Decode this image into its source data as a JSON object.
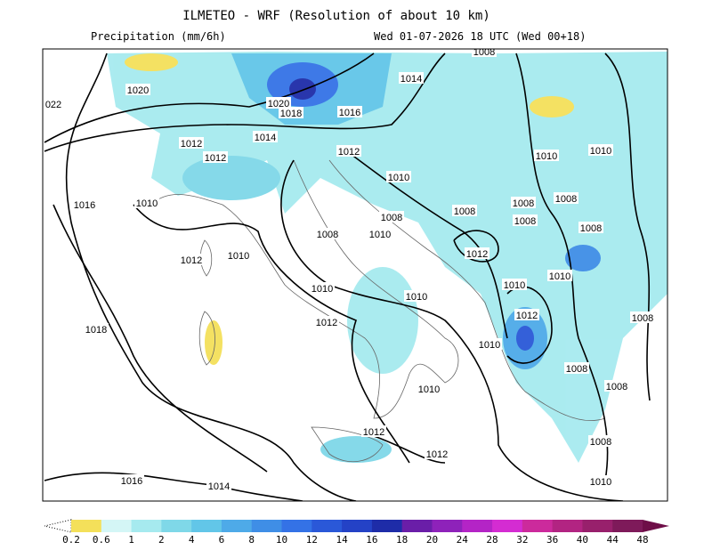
{
  "header": {
    "title": "ILMETEO - WRF (Resolution of about 10 km)",
    "field": "Precipitation (mm/6h)",
    "valid_time": "Wed 01-07-2026 18 UTC (Wed 00+18)"
  },
  "isobar_labels": [
    "1020",
    "022",
    "1020",
    "1018",
    "1016",
    "1014",
    "1014",
    "1012",
    "1012",
    "1012",
    "1010",
    "1016",
    "1010",
    "1012",
    "1010",
    "1008",
    "1010",
    "1008",
    "1008",
    "1008",
    "1008",
    "1008",
    "1010",
    "1010",
    "1012",
    "1008",
    "1010",
    "1010",
    "1010",
    "1010",
    "1012",
    "1008",
    "1018",
    "1012",
    "1010",
    "1008",
    "1008",
    "1010",
    "1012",
    "1012",
    "1008",
    "1010",
    "1016",
    "1014",
    "1008"
  ],
  "colorbar": {
    "labels": [
      "0.2",
      "0.6",
      "1",
      "2",
      "4",
      "6",
      "8",
      "10",
      "12",
      "14",
      "16",
      "18",
      "20",
      "24",
      "28",
      "32",
      "36",
      "40",
      "44",
      "48"
    ],
    "under_color": "#ffffff",
    "colors": [
      "#f4e05a",
      "#d4f6f6",
      "#a6eaef",
      "#7fd8e8",
      "#62c6e8",
      "#4eaae8",
      "#3f8ee6",
      "#3472e6",
      "#2a58d8",
      "#2442c6",
      "#1e2ca8",
      "#6a1ea8",
      "#8e22ba",
      "#b424c6",
      "#d42cd2",
      "#cc2a9c",
      "#b22482",
      "#98206c",
      "#7e1a5a"
    ],
    "over_color": "#6e0e48"
  }
}
